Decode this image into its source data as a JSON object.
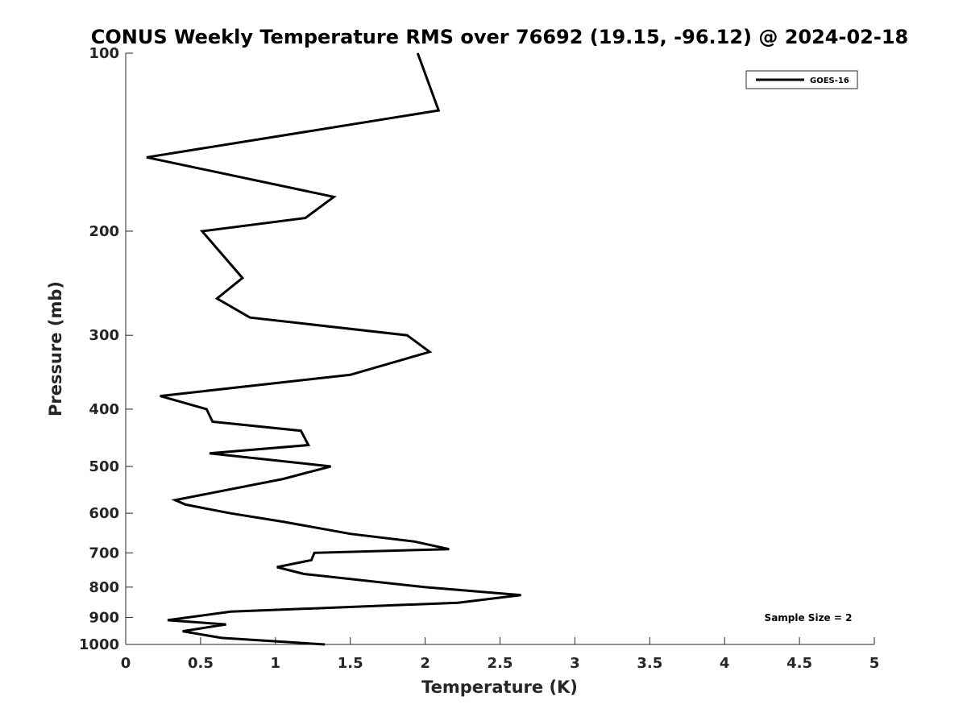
{
  "chart_data": {
    "type": "line",
    "title": "CONUS Weekly Temperature RMS over 76692 (19.15, -96.12) @ 2024-02-18",
    "xlabel": "Temperature (K)",
    "ylabel": "Pressure (mb)",
    "xlim": [
      0,
      5
    ],
    "ylim": [
      100,
      1000
    ],
    "yscale": "log",
    "y_reversed": true,
    "grid": false,
    "legend_position": "top-right",
    "x_ticks": [
      0,
      0.5,
      1,
      1.5,
      2,
      2.5,
      3,
      3.5,
      4,
      4.5,
      5
    ],
    "x_tick_labels": [
      "0",
      "0.5",
      "1",
      "1.5",
      "2",
      "2.5",
      "3",
      "3.5",
      "4",
      "4.5",
      "5"
    ],
    "y_ticks": [
      100,
      200,
      300,
      400,
      500,
      600,
      700,
      800,
      900,
      1000
    ],
    "y_tick_labels": [
      "100",
      "200",
      "300",
      "400",
      "500",
      "600",
      "700",
      "800",
      "900",
      "1000"
    ],
    "series": [
      {
        "name": "GOES-16",
        "color": "#000000",
        "points": [
          [
            1.95,
            100
          ],
          [
            2.09,
            125
          ],
          [
            0.14,
            150
          ],
          [
            1.39,
            175
          ],
          [
            1.2,
            190
          ],
          [
            0.51,
            200
          ],
          [
            0.78,
            240
          ],
          [
            0.61,
            260
          ],
          [
            0.83,
            280
          ],
          [
            1.88,
            300
          ],
          [
            2.03,
            320
          ],
          [
            1.5,
            350
          ],
          [
            0.23,
            380
          ],
          [
            0.54,
            400
          ],
          [
            0.58,
            420
          ],
          [
            1.17,
            435
          ],
          [
            1.22,
            460
          ],
          [
            0.56,
            475
          ],
          [
            1.37,
            500
          ],
          [
            1.05,
            525
          ],
          [
            0.33,
            570
          ],
          [
            0.4,
            580
          ],
          [
            0.7,
            600
          ],
          [
            1.05,
            620
          ],
          [
            1.5,
            650
          ],
          [
            1.93,
            670
          ],
          [
            2.16,
            690
          ],
          [
            1.26,
            700
          ],
          [
            1.24,
            720
          ],
          [
            1.01,
            740
          ],
          [
            1.19,
            760
          ],
          [
            2.0,
            800
          ],
          [
            2.64,
            825
          ],
          [
            2.22,
            850
          ],
          [
            0.7,
            880
          ],
          [
            0.28,
            910
          ],
          [
            0.67,
            925
          ],
          [
            0.38,
            950
          ],
          [
            0.64,
            975
          ],
          [
            1.33,
            1000
          ]
        ]
      }
    ],
    "annotations": [
      {
        "text": "Sample Size = 2",
        "position": "bottom-right"
      }
    ]
  }
}
